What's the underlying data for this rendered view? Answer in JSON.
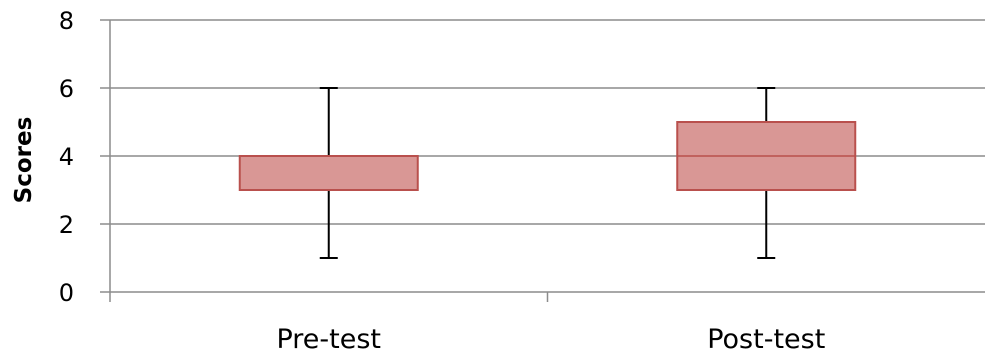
{
  "chart_data": {
    "type": "boxplot",
    "title": "",
    "xlabel": "",
    "ylabel": "Scores",
    "ylim": [
      0,
      8
    ],
    "yticks": [
      0,
      2,
      4,
      6,
      8
    ],
    "grid": true,
    "legend": "none",
    "categories": [
      "Pre-test",
      "Post-test"
    ],
    "boxes": [
      {
        "category": "Pre-test",
        "min": 1,
        "q1": 3,
        "median": 4,
        "q3": 4,
        "max": 6
      },
      {
        "category": "Post-test",
        "min": 1,
        "q1": 3,
        "median": 4,
        "q3": 5,
        "max": 6
      }
    ],
    "colors": {
      "box_fill": "#d99795",
      "box_stroke": "#b9504d",
      "whisker": "#000000",
      "grid": "#8c8c8c"
    }
  }
}
